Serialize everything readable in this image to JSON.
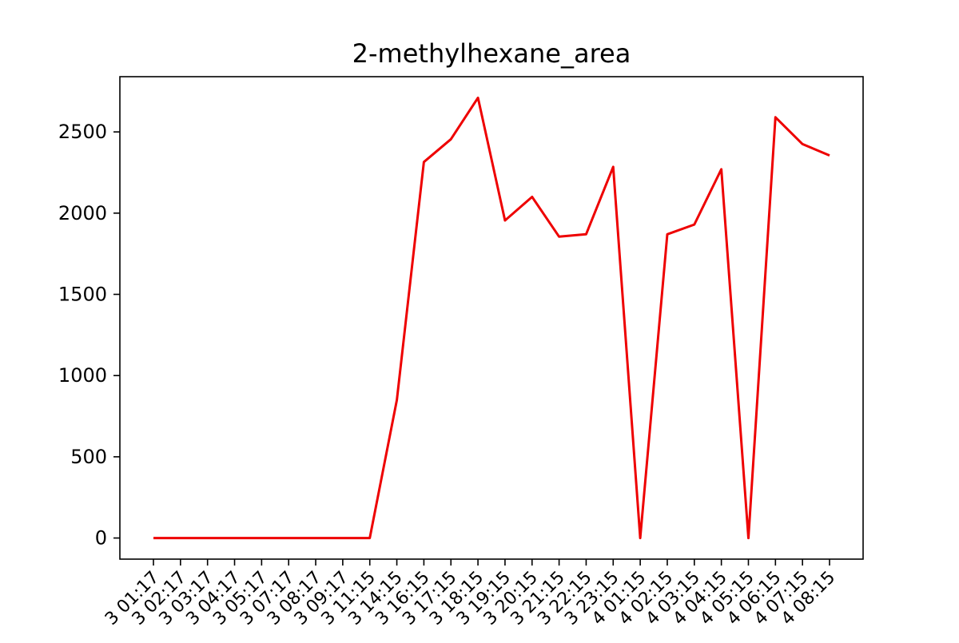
{
  "chart_data": {
    "type": "line",
    "title": "2-methylhexane_area",
    "xlabel": "",
    "ylabel": "",
    "x": [
      "3 01:17",
      "3 02:17",
      "3 03:17",
      "3 04:17",
      "3 05:17",
      "3 07:17",
      "3 08:17",
      "3 09:17",
      "3 11:15",
      "3 14:15",
      "3 16:15",
      "3 17:15",
      "3 18:15",
      "3 19:15",
      "3 20:15",
      "3 21:15",
      "3 22:15",
      "3 23:15",
      "4 01:15",
      "4 02:15",
      "4 03:15",
      "4 04:15",
      "4 05:15",
      "4 06:15",
      "4 07:15",
      "4 08:15"
    ],
    "y_ticks": [
      0,
      500,
      1000,
      1500,
      2000,
      2500
    ],
    "ylim": [
      -130,
      2840
    ],
    "series": [
      {
        "color": "#ee0000",
        "values": [
          0,
          0,
          0,
          0,
          0,
          0,
          0,
          0,
          0,
          850,
          2315,
          2455,
          2710,
          1955,
          2100,
          1855,
          1870,
          2285,
          0,
          1870,
          1930,
          2270,
          0,
          2590,
          2425,
          2355
        ]
      }
    ],
    "grid": false,
    "legend": "none"
  }
}
